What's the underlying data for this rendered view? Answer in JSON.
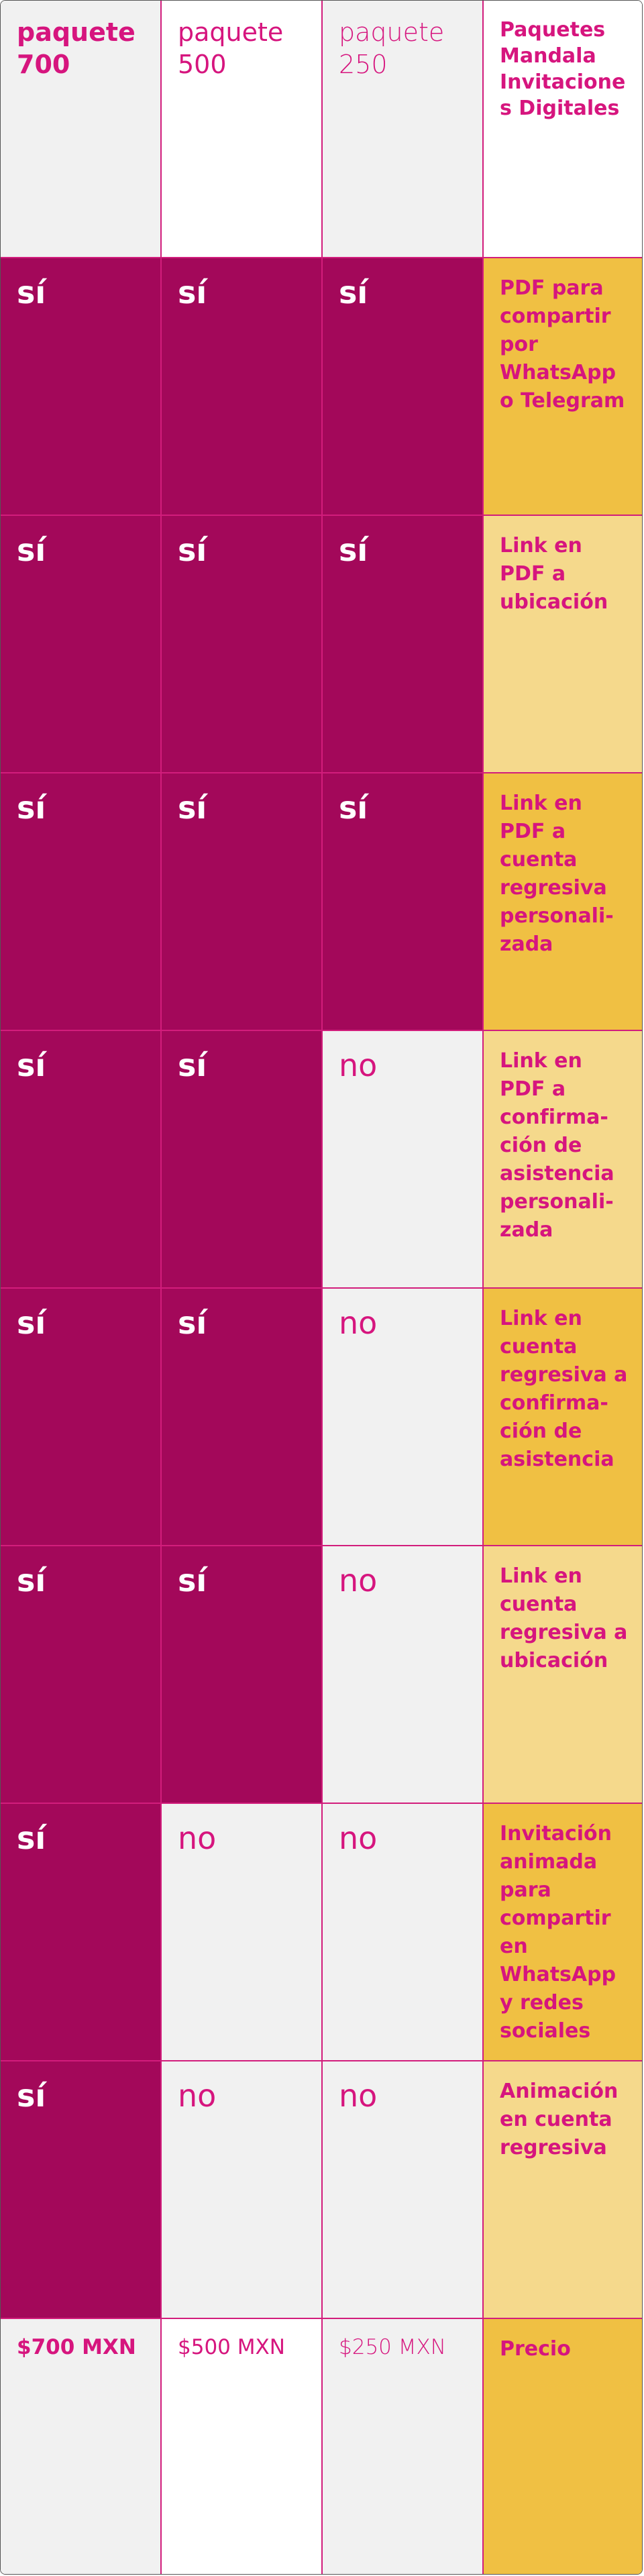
{
  "header": [
    "paquete 700",
    "paquete 500",
    "paquete 250",
    "Paquetes Mandala Invitaciones Digitales"
  ],
  "rows": [
    {
      "cells": [
        "sí",
        "sí",
        "sí"
      ],
      "feature": "PDF para compartir por WhatsApp o Telegram"
    },
    {
      "cells": [
        "sí",
        "sí",
        "sí"
      ],
      "feature": "Link en PDF a ubicación"
    },
    {
      "cells": [
        "sí",
        "sí",
        "sí"
      ],
      "feature": "Link en PDF a cuenta regresiva personali­zada"
    },
    {
      "cells": [
        "sí",
        "sí",
        "no"
      ],
      "feature": "Link en PDF a confirma­ción de asistencia personali­zada"
    },
    {
      "cells": [
        "sí",
        "sí",
        "no"
      ],
      "feature": "Link en cuenta regresiva a confirma­ción de asistencia"
    },
    {
      "cells": [
        "sí",
        "sí",
        "no"
      ],
      "feature": "Link en cuenta regresiva a ubicación"
    },
    {
      "cells": [
        "sí",
        "no",
        "no"
      ],
      "feature": "Invitación animada para compartir en WhatsApp y redes sociales"
    },
    {
      "cells": [
        "sí",
        "no",
        "no"
      ],
      "feature": "Animación en cuenta regresiva"
    }
  ],
  "price": {
    "cells": [
      "$700 MXN",
      "$500 MXN",
      "$250 MXN"
    ],
    "label": "Precio"
  }
}
